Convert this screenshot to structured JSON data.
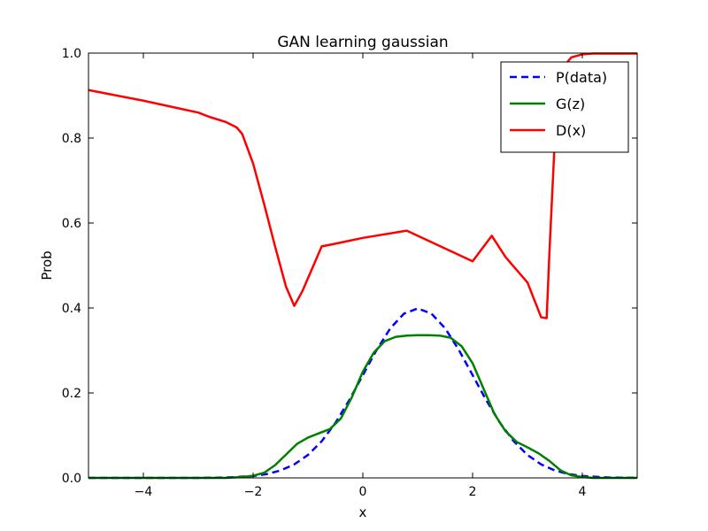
{
  "chart_data": {
    "type": "line",
    "title": "GAN learning gaussian",
    "xlabel": "x",
    "ylabel": "Prob",
    "xlim": [
      -5,
      5
    ],
    "ylim": [
      0,
      1
    ],
    "xticks": [
      -4,
      -2,
      0,
      2,
      4
    ],
    "yticks": [
      0.0,
      0.2,
      0.4,
      0.6,
      0.8,
      1.0
    ],
    "ytick_labels": [
      "0.0",
      "0.2",
      "0.4",
      "0.6",
      "0.8",
      "1.0"
    ],
    "grid": false,
    "legend_position": "top-right",
    "series": [
      {
        "name": "P(data)",
        "color": "#0000ff",
        "style": "dashed",
        "x": [
          -5,
          -4,
          -3,
          -2.5,
          -2,
          -1.75,
          -1.5,
          -1.25,
          -1,
          -0.75,
          -0.5,
          -0.25,
          0,
          0.25,
          0.5,
          0.75,
          1,
          1.25,
          1.5,
          1.75,
          2,
          2.25,
          2.5,
          2.75,
          3,
          3.25,
          3.5,
          3.75,
          4,
          4.5,
          5
        ],
        "y": [
          0.0,
          0.0,
          0.0001,
          0.0009,
          0.0044,
          0.009,
          0.0175,
          0.0317,
          0.054,
          0.0863,
          0.1295,
          0.1826,
          0.242,
          0.3011,
          0.3521,
          0.3867,
          0.3989,
          0.3867,
          0.3521,
          0.3011,
          0.242,
          0.1826,
          0.1295,
          0.0863,
          0.054,
          0.0317,
          0.0175,
          0.009,
          0.0044,
          0.0009,
          0.0001
        ]
      },
      {
        "name": "G(z)",
        "color": "#008000",
        "style": "solid",
        "x": [
          -5,
          -2.5,
          -2.2,
          -2.0,
          -1.8,
          -1.6,
          -1.4,
          -1.2,
          -1.0,
          -0.8,
          -0.6,
          -0.4,
          -0.2,
          0,
          0.2,
          0.4,
          0.6,
          0.8,
          1.0,
          1.2,
          1.4,
          1.6,
          1.8,
          2.0,
          2.2,
          2.4,
          2.6,
          2.8,
          3.0,
          3.2,
          3.4,
          3.6,
          3.8,
          4.0,
          4.2,
          5
        ],
        "y": [
          0.0,
          0.0,
          0.002,
          0.005,
          0.012,
          0.03,
          0.055,
          0.08,
          0.095,
          0.105,
          0.115,
          0.14,
          0.19,
          0.25,
          0.295,
          0.322,
          0.332,
          0.335,
          0.336,
          0.336,
          0.335,
          0.33,
          0.31,
          0.27,
          0.21,
          0.15,
          0.11,
          0.085,
          0.072,
          0.058,
          0.04,
          0.018,
          0.006,
          0.002,
          0.0,
          0.0
        ]
      },
      {
        "name": "D(x)",
        "color": "#ff0000",
        "style": "solid",
        "x": [
          -5,
          -4,
          -3.5,
          -3,
          -2.8,
          -2.5,
          -2.3,
          -2.2,
          -2.0,
          -1.8,
          -1.6,
          -1.4,
          -1.25,
          -1.1,
          -0.9,
          -0.75,
          -0.55,
          0,
          0.8,
          2.0,
          2.35,
          2.6,
          3.0,
          3.25,
          3.35,
          3.4,
          3.5,
          3.6,
          3.8,
          4.0,
          4.2,
          5
        ],
        "y": [
          0.913,
          0.888,
          0.874,
          0.86,
          0.85,
          0.838,
          0.825,
          0.81,
          0.74,
          0.645,
          0.545,
          0.45,
          0.405,
          0.44,
          0.5,
          0.545,
          0.55,
          0.565,
          0.582,
          0.51,
          0.57,
          0.52,
          0.46,
          0.378,
          0.376,
          0.53,
          0.8,
          0.96,
          0.99,
          0.997,
          0.999,
          0.999
        ]
      }
    ]
  }
}
